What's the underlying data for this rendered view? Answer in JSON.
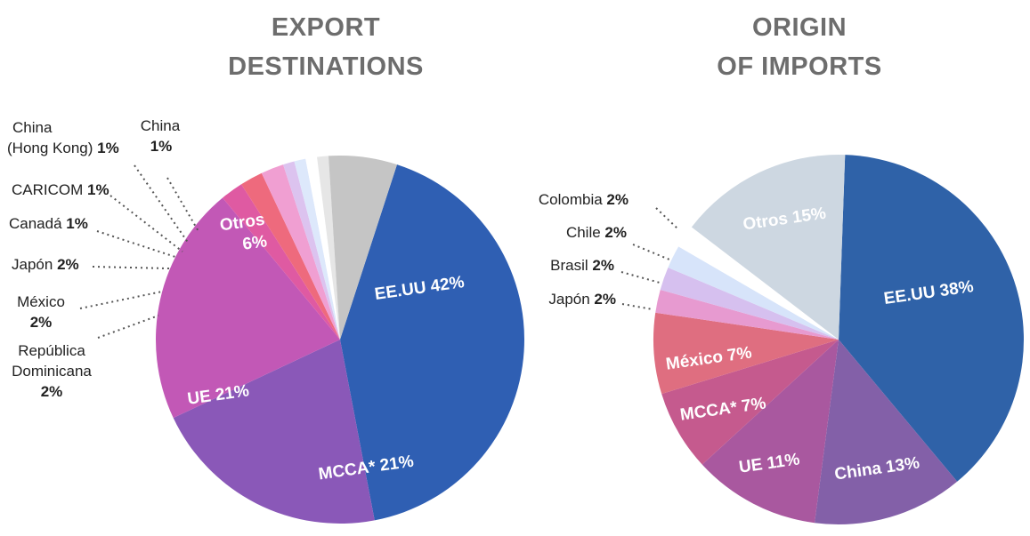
{
  "chart_data": [
    {
      "type": "pie",
      "title_line1": "EXPORT",
      "title_line2": "DESTINATIONS",
      "slices": [
        {
          "name": "EE.UU",
          "value": 42,
          "pct": "42%",
          "color": "#2f5fb3",
          "label": "EE.UU 42%"
        },
        {
          "name": "MCCA*",
          "value": 21,
          "pct": "21%",
          "color": "#8a58b8",
          "label": "MCCA* 21%"
        },
        {
          "name": "UE",
          "value": 21,
          "pct": "21%",
          "color": "#c258b6",
          "label": "UE 21%"
        },
        {
          "name": "República Dominicana",
          "value": 2,
          "pct": "2%",
          "color": "#df5aa2"
        },
        {
          "name": "México",
          "value": 2,
          "pct": "2%",
          "color": "#ee6a7d"
        },
        {
          "name": "Japón",
          "value": 2,
          "pct": "2%",
          "color": "#f09fd2"
        },
        {
          "name": "Canadá",
          "value": 1,
          "pct": "1%",
          "color": "#dcc3ef"
        },
        {
          "name": "CARICOM",
          "value": 1,
          "pct": "1%",
          "color": "#dde8fb"
        },
        {
          "name": "China (Hong Kong)",
          "value": 1,
          "pct": "1%",
          "color": "#ffffff"
        },
        {
          "name": "China",
          "value": 1,
          "pct": "1%",
          "color": "#e6e6e6"
        },
        {
          "name": "Otros",
          "value": 6,
          "pct": "6%",
          "color": "#c5c5c5",
          "label1": "Otros",
          "label2": "6%"
        }
      ],
      "outside_labels": {
        "china_hk_1": "China",
        "china_hk_2": "(Hong Kong)",
        "china": "China",
        "caricom": "CARICOM",
        "canada": "Canadá",
        "japon": "Japón",
        "mexico": "México",
        "rd_1": "República",
        "rd_2": "Dominicana"
      }
    },
    {
      "type": "pie",
      "title_line1": "ORIGIN",
      "title_line2": "OF IMPORTS",
      "slices": [
        {
          "name": "EE.UU",
          "value": 38,
          "pct": "38%",
          "color": "#2f62a8",
          "label": "EE.UU 38%"
        },
        {
          "name": "China",
          "value": 13,
          "pct": "13%",
          "color": "#8360a8",
          "label": "China 13%"
        },
        {
          "name": "UE",
          "value": 11,
          "pct": "11%",
          "color": "#a9589f",
          "label": "UE 11%"
        },
        {
          "name": "MCCA*",
          "value": 7,
          "pct": "7%",
          "color": "#c55a8e",
          "label": "MCCA* 7%"
        },
        {
          "name": "México",
          "value": 7,
          "pct": "7%",
          "color": "#df6e80",
          "label": "México 7%"
        },
        {
          "name": "Japón",
          "value": 2,
          "pct": "2%",
          "color": "#e79ad0"
        },
        {
          "name": "Brasil",
          "value": 2,
          "pct": "2%",
          "color": "#d6c0ef"
        },
        {
          "name": "Chile",
          "value": 2,
          "pct": "2%",
          "color": "#d7e4fa"
        },
        {
          "name": "Colombia",
          "value": 2,
          "pct": "2%",
          "color": "#ffffff"
        },
        {
          "name": "Otros",
          "value": 15,
          "pct": "15%",
          "color": "#cdd7e1",
          "label": "Otros 15%"
        }
      ],
      "outside_labels": {
        "colombia": "Colombia",
        "chile": "Chile",
        "brasil": "Brasil",
        "japon": "Japón"
      }
    }
  ]
}
